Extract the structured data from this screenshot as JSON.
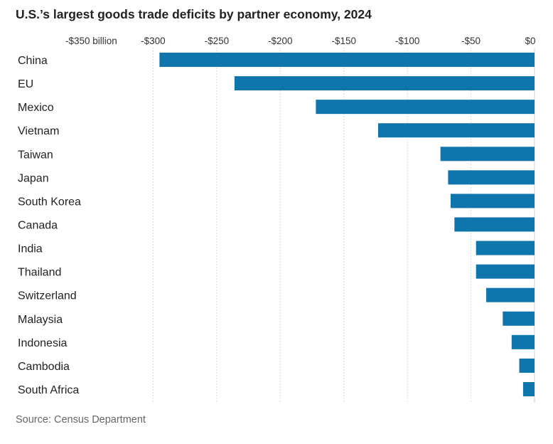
{
  "title": "U.S.’s largest goods trade deficits by partner economy, 2024",
  "source": "Source: Census Department",
  "colors": {
    "bar": "#0f75ad"
  },
  "chart_data": {
    "type": "bar",
    "orientation": "horizontal",
    "title": "U.S.’s largest goods trade deficits by partner economy, 2024",
    "categories": [
      "China",
      "EU",
      "Mexico",
      "Vietnam",
      "Taiwan",
      "Japan",
      "South Korea",
      "Canada",
      "India",
      "Thailand",
      "Switzerland",
      "Malaysia",
      "Indonesia",
      "Cambodia",
      "South Africa"
    ],
    "values": [
      -295,
      -236,
      -172,
      -123,
      -74,
      -68,
      -66,
      -63,
      -46,
      -46,
      -38,
      -25,
      -18,
      -12,
      -9
    ],
    "xlim": [
      -350,
      0
    ],
    "ticks": [
      -350,
      -300,
      -250,
      -200,
      -150,
      -100,
      -50,
      0
    ],
    "tick_labels": [
      "-$350 billion",
      "-$300",
      "-$250",
      "-$200",
      "-$150",
      "-$100",
      "-$50",
      "$0"
    ],
    "xlabel": "",
    "ylabel": "",
    "grid": true
  }
}
